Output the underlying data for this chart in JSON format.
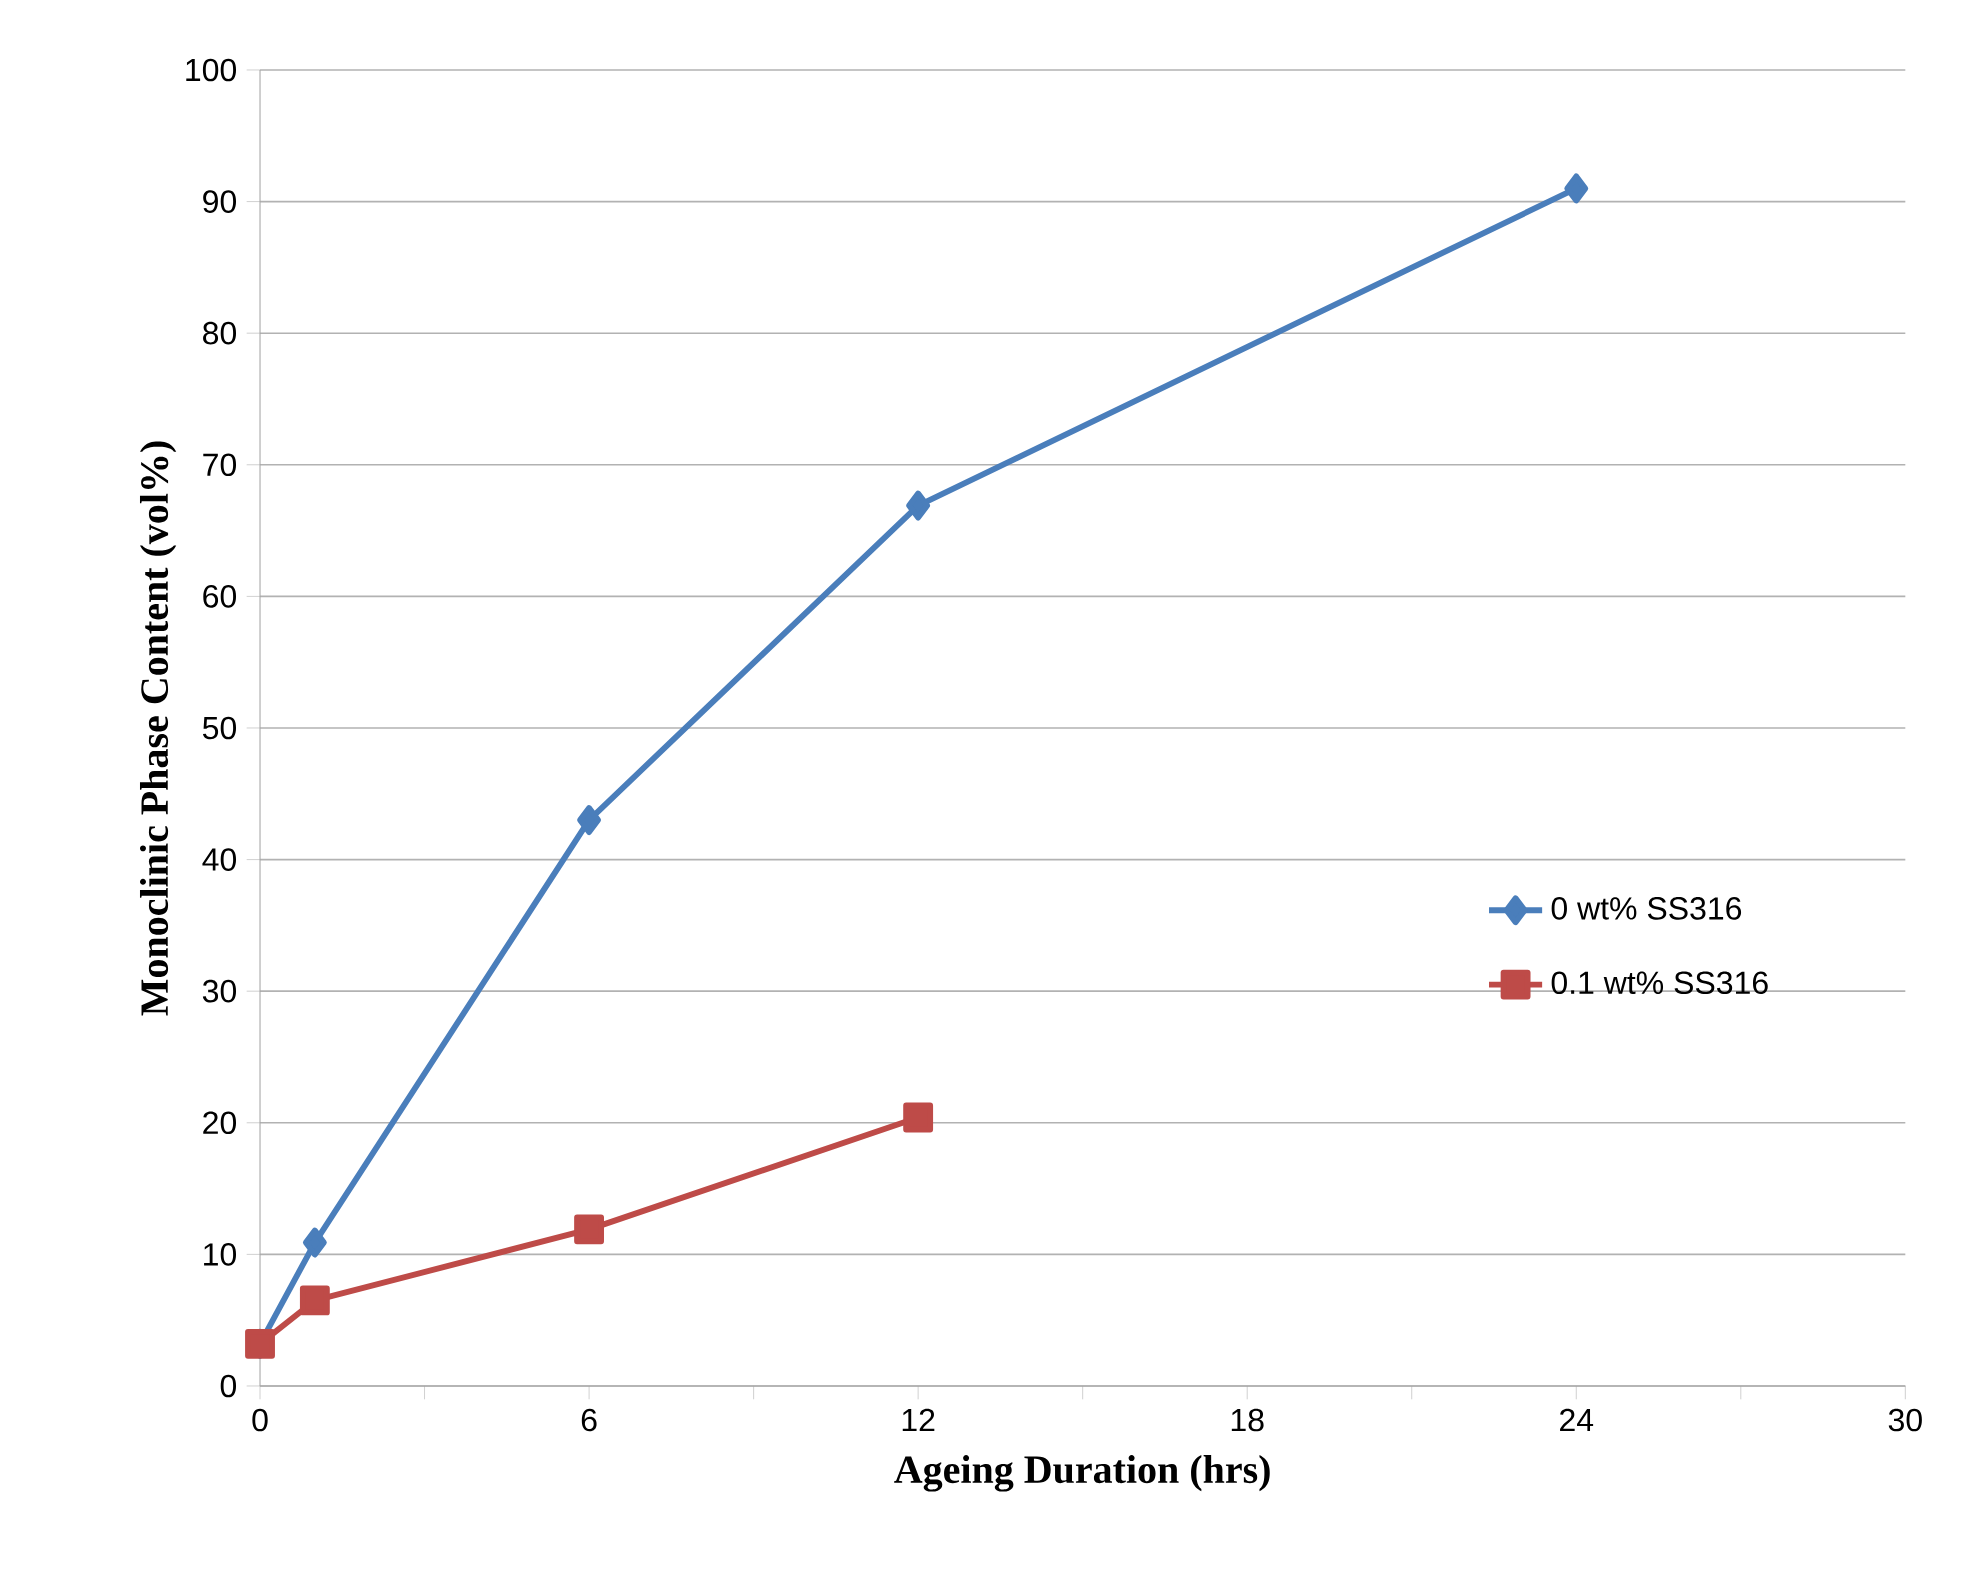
{
  "chart_data": {
    "type": "line",
    "xlabel": "Ageing Duration (hrs)",
    "ylabel": "Monoclinic Phase Content (vol%)",
    "series": [
      {
        "name": "0 wt% SS316",
        "color": "#4a7ebb",
        "marker": "diamond",
        "x": [
          0,
          1,
          6,
          12,
          24
        ],
        "values": [
          3.2,
          10.9,
          43.0,
          66.9,
          91.0
        ]
      },
      {
        "name": "0.1 wt% SS316",
        "color": "#be4b48",
        "marker": "square",
        "x": [
          0,
          1,
          6,
          12
        ],
        "values": [
          3.2,
          6.5,
          11.9,
          20.4
        ]
      }
    ],
    "xlim": [
      0,
      30
    ],
    "ylim": [
      0,
      100
    ],
    "xticks": [
      0,
      {
        "value": 3,
        "label": null
      },
      6,
      {
        "value": 9,
        "label": null
      },
      12,
      {
        "value": 15,
        "label": null
      },
      18,
      {
        "value": 21,
        "label": null
      },
      24,
      {
        "value": 27,
        "label": null
      },
      30
    ],
    "yticks": [
      0,
      10,
      20,
      30,
      40,
      50,
      60,
      70,
      80,
      90,
      100
    ],
    "grid": "y",
    "legend": "right",
    "line_style": "solid"
  }
}
